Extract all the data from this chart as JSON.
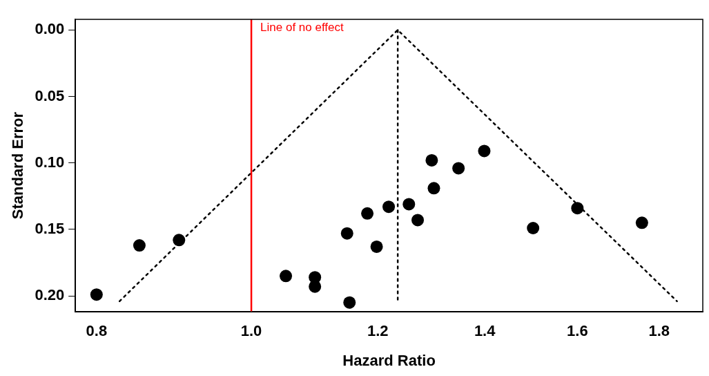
{
  "chart_data": {
    "type": "scatter",
    "xlabel": "Hazard Ratio",
    "ylabel": "Standard Error",
    "log": "x",
    "grid": false,
    "legend": false,
    "marker": "circle",
    "xlim": [
      0.776,
      1.917
    ],
    "xticks": [
      0.8,
      {
        "value": 1,
        "label": "1.0"
      },
      1.2,
      1.4,
      1.6,
      1.8
    ],
    "ylim": [
      0.212,
      -0.008
    ],
    "yticks": [
      {
        "value": 0,
        "label": "0.00"
      },
      0.05,
      {
        "value": 0.1,
        "label": "0.10"
      },
      0.15,
      {
        "value": 0.2,
        "label": "0.20"
      }
    ],
    "series": [
      {
        "type": "scatter",
        "color": "#000000",
        "x": [
          0.8,
          0.851,
          0.901,
          1.051,
          1.096,
          1.096,
          1.152,
          1.148,
          1.182,
          1.198,
          1.219,
          1.255,
          1.271,
          1.297,
          1.301,
          1.348,
          1.399,
          1.501,
          1.6,
          1.756
        ],
        "values": [
          0.199,
          0.162,
          0.158,
          0.185,
          0.186,
          0.193,
          0.205,
          0.153,
          0.138,
          0.163,
          0.133,
          0.131,
          0.143,
          0.098,
          0.119,
          0.104,
          0.091,
          0.149,
          0.134,
          0.145
        ]
      },
      {
        "type": "line",
        "line_style": "dotted",
        "marker": "none",
        "color": "#000000",
        "x": [
          0.827,
          1.235,
          1.847
        ],
        "values": [
          0.204,
          0,
          0.204
        ]
      },
      {
        "type": "line",
        "line_style": "dotted",
        "marker": "none",
        "color": "#000000",
        "x": [
          1.235,
          1.235
        ],
        "values": [
          0,
          0.204
        ]
      }
    ],
    "ref_lines": [
      {
        "axis": "x",
        "value": 1,
        "label": "Line of no effect",
        "color": "#ff0000"
      }
    ]
  }
}
